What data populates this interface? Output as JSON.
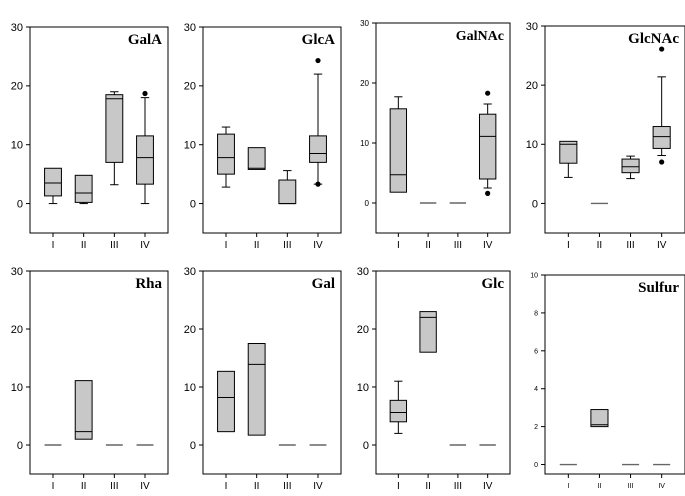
{
  "chart_data": [
    {
      "type": "box",
      "title": "GalA",
      "categories": [
        "I",
        "II",
        "III",
        "IV"
      ],
      "ylim": [
        -5,
        30
      ],
      "yticks": [
        "0",
        "10",
        "20",
        "30"
      ],
      "boxes": [
        {
          "min": 0,
          "q1": 1.3,
          "median": 3.5,
          "q3": 6,
          "max": 6,
          "outliers": []
        },
        {
          "min": 0,
          "q1": 0.2,
          "median": 1.8,
          "q3": 4.8,
          "max": 4.8,
          "outliers": []
        },
        {
          "min": 3.2,
          "q1": 7,
          "median": 17.8,
          "q3": 18.5,
          "max": 19,
          "outliers": []
        },
        {
          "min": 0,
          "q1": 3.3,
          "median": 7.8,
          "q3": 11.5,
          "max": 18,
          "outliers": [
            18.7
          ]
        }
      ]
    },
    {
      "type": "box",
      "title": "GlcA",
      "categories": [
        "I",
        "II",
        "III",
        "IV"
      ],
      "ylim": [
        -5,
        30
      ],
      "yticks": [
        "0",
        "10",
        "20",
        "30"
      ],
      "boxes": [
        {
          "min": 2.8,
          "q1": 5,
          "median": 7.8,
          "q3": 11.8,
          "max": 13,
          "outliers": []
        },
        {
          "min": 5.8,
          "q1": 5.8,
          "median": 6,
          "q3": 9.5,
          "max": 9.5,
          "outliers": []
        },
        {
          "min": 0,
          "q1": 0,
          "median": 0,
          "q3": 4,
          "max": 5.6,
          "outliers": []
        },
        {
          "min": 3.3,
          "q1": 7,
          "median": 8.5,
          "q3": 11.5,
          "max": 22,
          "outliers": [
            3.3,
            24.3
          ]
        }
      ]
    },
    {
      "type": "box",
      "title": "GalNAc",
      "categories": [
        "I",
        "II",
        "III",
        "IV"
      ],
      "ylim": [
        -5,
        30
      ],
      "yticks": [
        "0",
        "10",
        "20",
        "30"
      ],
      "boxes": [
        {
          "min": 1.8,
          "q1": 1.8,
          "median": 4.7,
          "q3": 15.7,
          "max": 17.7,
          "outliers": []
        },
        {
          "min": 0,
          "q1": 0,
          "median": 0,
          "q3": 0,
          "max": 0,
          "outliers": []
        },
        {
          "min": 0,
          "q1": 0,
          "median": 0,
          "q3": 0,
          "max": 0,
          "outliers": []
        },
        {
          "min": 2.5,
          "q1": 4,
          "median": 11.1,
          "q3": 14.8,
          "max": 16.5,
          "outliers": [
            1.6,
            18.3
          ]
        }
      ]
    },
    {
      "type": "box",
      "title": "GlcNAc",
      "categories": [
        "I",
        "II",
        "III",
        "IV"
      ],
      "ylim": [
        -5,
        30
      ],
      "yticks": [
        "0",
        "10",
        "20",
        "30"
      ],
      "boxes": [
        {
          "min": 4.4,
          "q1": 6.8,
          "median": 10,
          "q3": 10.5,
          "max": 10.5,
          "outliers": []
        },
        {
          "min": 0,
          "q1": 0,
          "median": 0,
          "q3": 0,
          "max": 0,
          "outliers": []
        },
        {
          "min": 4.2,
          "q1": 5.2,
          "median": 6.2,
          "q3": 7.5,
          "max": 8,
          "outliers": []
        },
        {
          "min": 8.1,
          "q1": 9.3,
          "median": 11.3,
          "q3": 13,
          "max": 21.4,
          "outliers": [
            7,
            26.1
          ]
        }
      ]
    },
    {
      "type": "box",
      "title": "Rha",
      "categories": [
        "I",
        "II",
        "III",
        "IV"
      ],
      "ylim": [
        -5,
        30
      ],
      "yticks": [
        "0",
        "10",
        "20",
        "30"
      ],
      "boxes": [
        {
          "min": 0,
          "q1": 0,
          "median": 0,
          "q3": 0,
          "max": 0,
          "outliers": []
        },
        {
          "min": 1,
          "q1": 1,
          "median": 2.3,
          "q3": 11.1,
          "max": 11.1,
          "outliers": []
        },
        {
          "min": 0,
          "q1": 0,
          "median": 0,
          "q3": 0,
          "max": 0,
          "outliers": []
        },
        {
          "min": 0,
          "q1": 0,
          "median": 0,
          "q3": 0,
          "max": 0,
          "outliers": []
        }
      ]
    },
    {
      "type": "box",
      "title": "Gal",
      "categories": [
        "I",
        "II",
        "III",
        "IV"
      ],
      "ylim": [
        -5,
        30
      ],
      "yticks": [
        "0",
        "10",
        "20",
        "30"
      ],
      "boxes": [
        {
          "min": 2.3,
          "q1": 2.3,
          "median": 8.2,
          "q3": 12.7,
          "max": 12.7,
          "outliers": []
        },
        {
          "min": 1.7,
          "q1": 1.7,
          "median": 13.9,
          "q3": 17.5,
          "max": 17.5,
          "outliers": []
        },
        {
          "min": 0,
          "q1": 0,
          "median": 0,
          "q3": 0,
          "max": 0,
          "outliers": []
        },
        {
          "min": 0,
          "q1": 0,
          "median": 0,
          "q3": 0,
          "max": 0,
          "outliers": []
        }
      ]
    },
    {
      "type": "box",
      "title": "Glc",
      "categories": [
        "I",
        "II",
        "III",
        "IV"
      ],
      "ylim": [
        -5,
        30
      ],
      "yticks": [
        "0",
        "10",
        "20",
        "30"
      ],
      "boxes": [
        {
          "min": 2,
          "q1": 4,
          "median": 5.6,
          "q3": 7.7,
          "max": 11,
          "outliers": []
        },
        {
          "min": 16,
          "q1": 16,
          "median": 22,
          "q3": 23,
          "max": 23,
          "outliers": []
        },
        {
          "min": 0,
          "q1": 0,
          "median": 0,
          "q3": 0,
          "max": 0,
          "outliers": []
        },
        {
          "min": 0,
          "q1": 0,
          "median": 0,
          "q3": 0,
          "max": 0,
          "outliers": []
        }
      ]
    },
    {
      "type": "box",
      "title": "Sulfur",
      "categories": [
        "I",
        "II",
        "III",
        "IV"
      ],
      "ylim": [
        -0.5,
        10
      ],
      "yticks": [
        "0",
        "2",
        "4",
        "6",
        "8",
        "10"
      ],
      "boxes": [
        {
          "min": 0,
          "q1": 0,
          "median": 0,
          "q3": 0,
          "max": 0,
          "outliers": []
        },
        {
          "min": 2,
          "q1": 2,
          "median": 2.1,
          "q3": 2.9,
          "max": 2.9,
          "outliers": []
        },
        {
          "min": 0,
          "q1": 0,
          "median": 0,
          "q3": 0,
          "max": 0,
          "outliers": []
        },
        {
          "min": 0,
          "q1": 0,
          "median": 0,
          "q3": 0,
          "max": 0,
          "outliers": []
        }
      ]
    }
  ],
  "style": {
    "box_fill": "#c8c8c8",
    "line_color": "#000000",
    "flat_line_color": "#666666"
  }
}
